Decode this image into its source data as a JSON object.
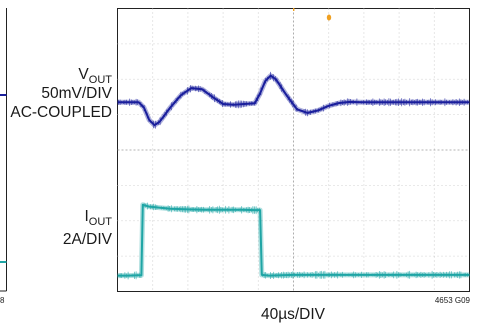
{
  "chart_data": {
    "type": "line",
    "title": "",
    "channels": [
      {
        "id": "vout",
        "label_main": "V",
        "label_sub": "OUT",
        "scale": "50mV/DIV",
        "coupling": "AC-COUPLED",
        "color": "#1a1f9c",
        "x": [
          0,
          0.3,
          0.6,
          0.75,
          0.9,
          1.05,
          1.2,
          1.5,
          1.8,
          2.1,
          2.4,
          2.7,
          3.0,
          3.3,
          3.6,
          3.9,
          4.05,
          4.2,
          4.35,
          4.5,
          4.8,
          5.1,
          5.4,
          5.7,
          6.0,
          6.3,
          6.6,
          6.9,
          7.2,
          7.5,
          7.8,
          8.1,
          8.4,
          8.7,
          9.0,
          9.3,
          9.6,
          10.0
        ],
        "y": [
          5.35,
          5.35,
          5.35,
          5.2,
          4.85,
          4.7,
          4.8,
          5.2,
          5.55,
          5.75,
          5.72,
          5.5,
          5.3,
          5.28,
          5.3,
          5.32,
          5.6,
          5.95,
          6.1,
          6.0,
          5.55,
          5.15,
          5.05,
          5.12,
          5.25,
          5.33,
          5.36,
          5.35,
          5.35,
          5.35,
          5.35,
          5.35,
          5.35,
          5.35,
          5.35,
          5.35,
          5.35,
          5.35
        ]
      },
      {
        "id": "iout",
        "label_main": "I",
        "label_sub": "OUT",
        "scale": "2A/DIV",
        "color": "#1fa5a5",
        "x": [
          0,
          0.3,
          0.6,
          0.68,
          0.72,
          0.9,
          1.5,
          2.0,
          2.5,
          3.0,
          3.5,
          3.9,
          4.05,
          4.1,
          4.3,
          5.0,
          6.0,
          7.0,
          8.0,
          9.0,
          10.0
        ],
        "y": [
          0.45,
          0.45,
          0.46,
          0.46,
          2.45,
          2.4,
          2.34,
          2.32,
          2.31,
          2.31,
          2.31,
          2.3,
          2.3,
          0.47,
          0.45,
          0.47,
          0.47,
          0.47,
          0.47,
          0.47,
          0.47
        ]
      }
    ],
    "xlabel": "40µs/DIV",
    "x_divisions": 10,
    "y_divisions": 8,
    "xlim": [
      0,
      10
    ],
    "ylim": [
      0,
      8
    ],
    "grid": true,
    "trigger_marker_color": "#f0a020",
    "figure_code": "4653 G09",
    "figure_code_left": "8"
  }
}
